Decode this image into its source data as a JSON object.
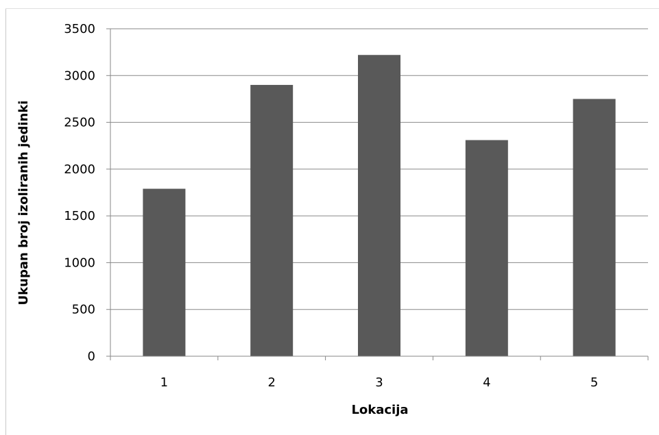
{
  "chart_data": {
    "type": "bar",
    "categories": [
      "1",
      "2",
      "3",
      "4",
      "5"
    ],
    "values": [
      1790,
      2900,
      3220,
      2310,
      2750
    ],
    "xlabel": "Lokacija",
    "ylabel": "Ukupan broj izoliranih jedinki",
    "ylim": [
      0,
      3500
    ],
    "yticks": [
      0,
      500,
      1000,
      1500,
      2000,
      2500,
      3000,
      3500
    ],
    "grid": true,
    "bar_color": "#595959",
    "grid_color": "#878787",
    "axis_color": "#878787"
  }
}
